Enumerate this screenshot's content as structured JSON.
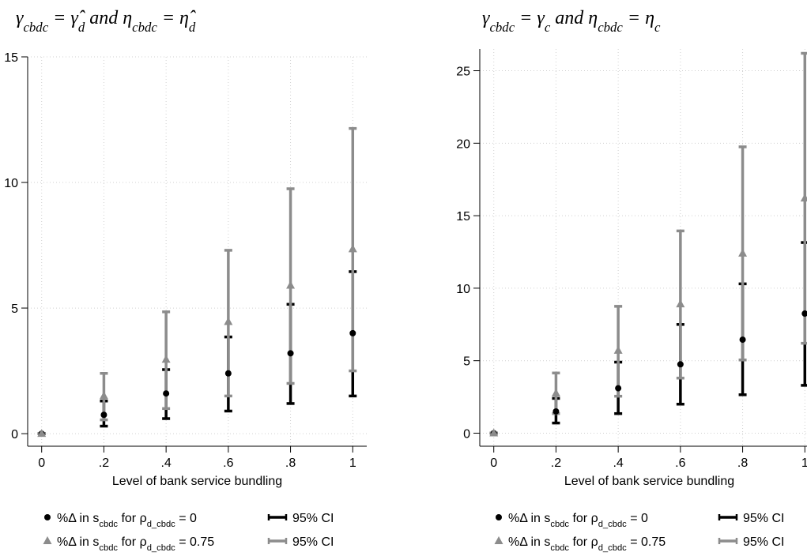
{
  "chart_data": [
    {
      "type": "errorbar",
      "title": [
        {
          "text": "γ"
        },
        {
          "text": "cbdc",
          "sub": true
        },
        {
          "text": " = "
        },
        {
          "text": "γ̂"
        },
        {
          "text": "d",
          "sub": true
        },
        {
          "text": " and "
        },
        {
          "text": "η"
        },
        {
          "text": "cbdc",
          "sub": true
        },
        {
          "text": " = "
        },
        {
          "text": "η̂"
        },
        {
          "text": "d",
          "sub": true
        }
      ],
      "x_label": "Level of bank service bundling",
      "x": [
        0,
        0.2,
        0.4,
        0.6,
        0.8,
        1
      ],
      "xlim": [
        -0.045,
        1.045
      ],
      "ylim": [
        -0.5,
        15
      ],
      "xticks": [
        0,
        {
          "value": 0.2,
          "label": ".2"
        },
        {
          "value": 0.4,
          "label": ".4"
        },
        {
          "value": 0.6,
          "label": ".6"
        },
        {
          "value": 0.8,
          "label": ".8"
        },
        1
      ],
      "yticks": [
        0,
        5,
        10,
        15
      ],
      "grid": true,
      "series": [
        {
          "name": [
            {
              "text": "%Δ in s"
            },
            {
              "text": "cbdc",
              "sub": true
            },
            {
              "text": " for ρ"
            },
            {
              "text": "d_cbdc",
              "sub": true
            },
            {
              "text": " = 0"
            }
          ],
          "color": "#000000",
          "marker": "circle",
          "ci_label": "95% CI",
          "values": [
            0,
            0.75,
            1.6,
            2.4,
            3.2,
            4.0
          ],
          "ci_low": [
            0,
            0.3,
            0.6,
            0.9,
            1.2,
            1.5
          ],
          "ci_high": [
            0,
            1.3,
            2.55,
            3.85,
            5.15,
            6.45
          ]
        },
        {
          "name": [
            {
              "text": "%Δ in s"
            },
            {
              "text": "cbdc",
              "sub": true
            },
            {
              "text": " for ρ"
            },
            {
              "text": "d_cbdc",
              "sub": true
            },
            {
              "text": " = 0.75"
            }
          ],
          "color": "#8c8c8c",
          "marker": "triangle",
          "ci_label": "95% CI",
          "values": [
            0,
            1.5,
            2.95,
            4.45,
            5.9,
            7.35
          ],
          "ci_low": [
            0,
            0.55,
            1.0,
            1.5,
            2.0,
            2.5
          ],
          "ci_high": [
            0,
            2.4,
            4.85,
            7.3,
            9.75,
            12.15
          ]
        }
      ]
    },
    {
      "type": "errorbar",
      "title": [
        {
          "text": "γ"
        },
        {
          "text": "cbdc",
          "sub": true
        },
        {
          "text": " = "
        },
        {
          "text": "γ"
        },
        {
          "text": "c",
          "sub": true
        },
        {
          "text": " and "
        },
        {
          "text": "η"
        },
        {
          "text": "cbdc",
          "sub": true
        },
        {
          "text": " = "
        },
        {
          "text": "η"
        },
        {
          "text": "c",
          "sub": true
        }
      ],
      "x_label": "Level of bank service bundling",
      "x": [
        0,
        0.2,
        0.4,
        0.6,
        0.8,
        1
      ],
      "xlim": [
        -0.045,
        1.045
      ],
      "ylim": [
        -0.9,
        26.5
      ],
      "xticks": [
        0,
        {
          "value": 0.2,
          "label": ".2"
        },
        {
          "value": 0.4,
          "label": ".4"
        },
        {
          "value": 0.6,
          "label": ".6"
        },
        {
          "value": 0.8,
          "label": ".8"
        },
        1
      ],
      "yticks": [
        0,
        5,
        10,
        15,
        20,
        25
      ],
      "grid": true,
      "series": [
        {
          "name": [
            {
              "text": "%Δ in s"
            },
            {
              "text": "cbdc",
              "sub": true
            },
            {
              "text": " for ρ"
            },
            {
              "text": "d_cbdc",
              "sub": true
            },
            {
              "text": " = 0"
            }
          ],
          "color": "#000000",
          "marker": "circle",
          "ci_label": "95% CI",
          "values": [
            0,
            1.5,
            3.1,
            4.75,
            6.45,
            8.25
          ],
          "ci_low": [
            0,
            0.7,
            1.35,
            2.0,
            2.65,
            3.3
          ],
          "ci_high": [
            0,
            2.4,
            4.9,
            7.5,
            10.3,
            13.15
          ]
        },
        {
          "name": [
            {
              "text": "%Δ in s"
            },
            {
              "text": "cbdc",
              "sub": true
            },
            {
              "text": " for ρ"
            },
            {
              "text": "d_cbdc",
              "sub": true
            },
            {
              "text": " = 0.75"
            }
          ],
          "color": "#8c8c8c",
          "marker": "triangle",
          "ci_label": "95% CI",
          "values": [
            0,
            2.75,
            5.7,
            8.9,
            12.4,
            16.2
          ],
          "ci_low": [
            0,
            1.35,
            2.55,
            3.8,
            5.05,
            6.2
          ],
          "ci_high": [
            0,
            4.15,
            8.75,
            13.95,
            19.75,
            26.2
          ]
        }
      ]
    }
  ]
}
